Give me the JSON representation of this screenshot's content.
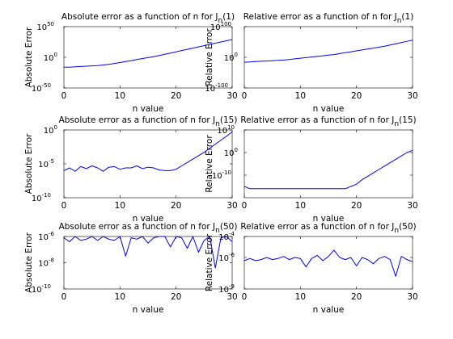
{
  "chart_data": [
    {
      "type": "line",
      "title": "Absolute error as a function of n for J",
      "title_sub": "n",
      "title_arg": "(1)",
      "xlabel": "n value",
      "ylabel": "Absolute Error",
      "yscale": "log",
      "xlim": [
        0,
        30
      ],
      "ylim_exp": [
        -50,
        50
      ],
      "xticks": [
        0,
        10,
        20,
        30
      ],
      "yticks": [
        {
          "base": "10",
          "exp": "-50",
          "v": -50
        },
        {
          "base": "10",
          "exp": "0",
          "v": 0
        },
        {
          "base": "10",
          "exp": "50",
          "v": 50
        }
      ],
      "grid": false,
      "color": "#0000ff",
      "series": [
        {
          "x": [
            0,
            1,
            2,
            3,
            4,
            5,
            6,
            7,
            8,
            9,
            10,
            11,
            12,
            13,
            14,
            15,
            16,
            17,
            18,
            19,
            20,
            21,
            22,
            23,
            24,
            25,
            26,
            27,
            28,
            29,
            30
          ],
          "log10_y": [
            -16,
            -16,
            -15.5,
            -15,
            -14.5,
            -14,
            -13.5,
            -12.5,
            -11.5,
            -10,
            -8.5,
            -7,
            -5.5,
            -3.5,
            -2,
            -0.5,
            1,
            3,
            5,
            7,
            9,
            11,
            13,
            15,
            17,
            19,
            21,
            23,
            25,
            27,
            29
          ]
        }
      ]
    },
    {
      "type": "line",
      "title": "Relative error as a function of n for J",
      "title_sub": "n",
      "title_arg": "(1)",
      "xlabel": "n value",
      "ylabel": "Relative Error",
      "yscale": "log",
      "xlim": [
        0,
        30
      ],
      "ylim_exp": [
        -100,
        100
      ],
      "xticks": [
        0,
        10,
        20,
        30
      ],
      "yticks": [
        {
          "base": "10",
          "exp": "-100",
          "v": -100
        },
        {
          "base": "10",
          "exp": "0",
          "v": 0
        },
        {
          "base": "10",
          "exp": "100",
          "v": 100
        }
      ],
      "grid": false,
      "color": "#0000ff",
      "series": [
        {
          "x": [
            0,
            1,
            2,
            3,
            4,
            5,
            6,
            7,
            8,
            9,
            10,
            11,
            12,
            13,
            14,
            15,
            16,
            17,
            18,
            19,
            20,
            21,
            22,
            23,
            24,
            25,
            26,
            27,
            28,
            29,
            30
          ],
          "log10_y": [
            -16,
            -15,
            -14,
            -13,
            -12,
            -11,
            -10,
            -9,
            -7,
            -5,
            -3,
            -1,
            1,
            3,
            5,
            7,
            9,
            12,
            15,
            18,
            21,
            24,
            27,
            30,
            33,
            36,
            40,
            44,
            48,
            52,
            56
          ]
        }
      ]
    },
    {
      "type": "line",
      "title": "Absolute error as a function of n for J",
      "title_sub": "n",
      "title_arg": "(15)",
      "xlabel": "n value",
      "ylabel": "Absolute Error",
      "yscale": "log",
      "xlim": [
        0,
        30
      ],
      "ylim_exp": [
        -10,
        0
      ],
      "xticks": [
        0,
        10,
        20,
        30
      ],
      "yticks": [
        {
          "base": "10",
          "exp": "-10",
          "v": -10
        },
        {
          "base": "10",
          "exp": "-5",
          "v": -5
        },
        {
          "base": "10",
          "exp": "0",
          "v": 0
        }
      ],
      "grid": false,
      "color": "#0000ff",
      "series": [
        {
          "x": [
            0,
            1,
            2,
            3,
            4,
            5,
            6,
            7,
            8,
            9,
            10,
            11,
            12,
            13,
            14,
            15,
            16,
            17,
            18,
            19,
            20,
            21,
            22,
            23,
            24,
            25,
            26,
            27,
            28,
            29,
            30
          ],
          "log10_y": [
            -6.0,
            -5.6,
            -6.1,
            -5.4,
            -5.7,
            -5.3,
            -5.6,
            -6.1,
            -5.5,
            -5.4,
            -5.8,
            -5.6,
            -5.6,
            -5.3,
            -5.7,
            -5.5,
            -5.6,
            -5.9,
            -6.0,
            -6.0,
            -5.8,
            -5.3,
            -4.8,
            -4.3,
            -3.8,
            -3.3,
            -2.7,
            -2.1,
            -1.5,
            -0.9,
            -0.3
          ]
        }
      ]
    },
    {
      "type": "line",
      "title": "Relative error as a function of n for J",
      "title_sub": "n",
      "title_arg": "(15)",
      "xlabel": "n value",
      "ylabel": "Relative Error",
      "yscale": "log",
      "xlim": [
        0,
        30
      ],
      "ylim_exp": [
        -20,
        10
      ],
      "xticks": [
        0,
        10,
        20,
        30
      ],
      "yticks": [
        {
          "base": "10",
          "exp": "-10",
          "v": -10
        },
        {
          "base": "10",
          "exp": "0",
          "v": 0
        },
        {
          "base": "10",
          "exp": "10",
          "v": 10
        }
      ],
      "grid": false,
      "color": "#0000ff",
      "series": [
        {
          "x": [
            0,
            1,
            2,
            3,
            4,
            5,
            6,
            7,
            8,
            9,
            10,
            11,
            12,
            13,
            14,
            15,
            16,
            17,
            18,
            19,
            20,
            21,
            22,
            23,
            24,
            25,
            26,
            27,
            28,
            29,
            30
          ],
          "log10_y": [
            -15,
            -16,
            -16,
            -16,
            -16,
            -16,
            -16,
            -16,
            -16,
            -16,
            -16,
            -16,
            -16,
            -16,
            -16,
            -16,
            -16,
            -16,
            -16,
            -15,
            -14,
            -12,
            -10.5,
            -9,
            -7.5,
            -6,
            -4.5,
            -3,
            -1.5,
            0,
            1
          ]
        }
      ]
    },
    {
      "type": "line",
      "title": "Absolute error as a function of n for J",
      "title_sub": "n",
      "title_arg": "(50)",
      "xlabel": "n value",
      "ylabel": "Absolute Error",
      "yscale": "log",
      "xlim": [
        0,
        30
      ],
      "ylim_exp": [
        -10,
        -6
      ],
      "xticks": [
        0,
        10,
        20,
        30
      ],
      "yticks": [
        {
          "base": "10",
          "exp": "-10",
          "v": -10
        },
        {
          "base": "10",
          "exp": "-8",
          "v": -8
        },
        {
          "base": "10",
          "exp": "-6",
          "v": -6
        }
      ],
      "grid": false,
      "color": "#0000ff",
      "series": [
        {
          "x": [
            0,
            1,
            2,
            3,
            4,
            5,
            6,
            7,
            8,
            9,
            10,
            11,
            12,
            13,
            14,
            15,
            16,
            17,
            18,
            19,
            20,
            21,
            22,
            23,
            24,
            25,
            26,
            27,
            28,
            29,
            30
          ],
          "log10_y": [
            -6.1,
            -6.4,
            -6.0,
            -6.3,
            -6.2,
            -6.0,
            -6.3,
            -6.0,
            -6.2,
            -6.3,
            -6.0,
            -7.5,
            -6.1,
            -6.2,
            -6.0,
            -6.5,
            -6.1,
            -6.0,
            -6.0,
            -6.8,
            -6.0,
            -6.1,
            -6.9,
            -6.0,
            -7.2,
            -6.3,
            -6.0,
            -8.4,
            -6.1,
            -6.0,
            -6.4
          ]
        }
      ]
    },
    {
      "type": "line",
      "title": "Relative error as a function of n for J",
      "title_sub": "n",
      "title_arg": "(50)",
      "xlabel": "n value",
      "ylabel": "Relative Error",
      "yscale": "log",
      "xlim": [
        0,
        30
      ],
      "ylim_exp": [
        -9,
        -4
      ],
      "xticks": [
        0,
        10,
        20,
        30
      ],
      "yticks": [
        {
          "base": "10",
          "exp": "-9",
          "v": -9
        },
        {
          "base": "10",
          "exp": "-6",
          "v": -6
        },
        {
          "base": "10",
          "exp": "-4",
          "v": -4
        }
      ],
      "grid": false,
      "color": "#0000ff",
      "series": [
        {
          "x": [
            0,
            1,
            2,
            3,
            4,
            5,
            6,
            7,
            8,
            9,
            10,
            11,
            12,
            13,
            14,
            15,
            16,
            17,
            18,
            19,
            20,
            21,
            22,
            23,
            24,
            25,
            26,
            27,
            28,
            29,
            30
          ],
          "log10_y": [
            -6.3,
            -6.1,
            -6.3,
            -6.2,
            -6.0,
            -6.2,
            -6.1,
            -5.9,
            -6.2,
            -6.0,
            -6.1,
            -6.9,
            -6.1,
            -5.8,
            -6.3,
            -5.9,
            -5.3,
            -6.0,
            -6.2,
            -6.0,
            -6.8,
            -6.0,
            -6.2,
            -6.6,
            -6.1,
            -5.9,
            -6.2,
            -7.8,
            -5.9,
            -6.2,
            -6.4
          ]
        }
      ]
    }
  ]
}
